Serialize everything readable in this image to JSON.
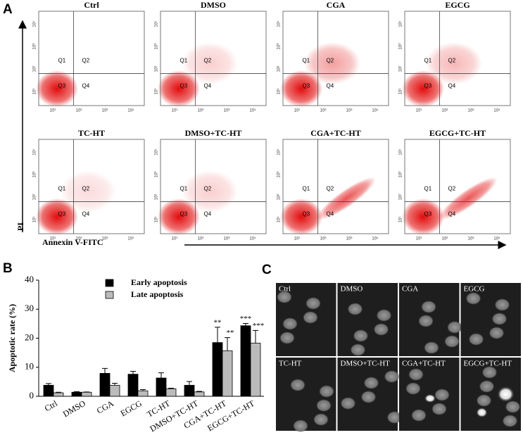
{
  "panel_a": {
    "label": "A",
    "plots": [
      "Ctrl",
      "DMSO",
      "CGA",
      "EGCG",
      "TC-HT",
      "DMSO+TC-HT",
      "CGA+TC-HT",
      "EGCG+TC-HT"
    ],
    "tick_labels": [
      "10¹",
      "10²",
      "10³",
      "10⁴"
    ],
    "quadrants": [
      "Q1",
      "Q2",
      "Q3",
      "Q4"
    ],
    "y_label": "PI",
    "x_label": "Annexin V-FITC"
  },
  "chart_data": {
    "type": "bar",
    "label": "B",
    "y_label": "Apoptotic rate (%)",
    "categories": [
      "Ctrl",
      "DMSO",
      "CGA",
      "EGCG",
      "TC-HT",
      "DMSO+TC-HT",
      "CGA+TC-HT",
      "EGCG+TC-HT"
    ],
    "series": [
      {
        "name": "Early apoptosis",
        "color": "#000000",
        "values": [
          3.8,
          1.4,
          7.9,
          7.6,
          6.3,
          3.8,
          18.5,
          24.3
        ],
        "errors": [
          0.6,
          0.2,
          1.7,
          1.0,
          1.8,
          1.3,
          5.3,
          0.8
        ],
        "annotations": [
          null,
          null,
          null,
          null,
          null,
          null,
          "**",
          "***"
        ]
      },
      {
        "name": "Late apoptosis",
        "color": "#bbbbbb",
        "values": [
          1.2,
          1.4,
          3.8,
          1.9,
          2.6,
          1.5,
          15.7,
          18.3
        ],
        "errors": [
          0.2,
          0.1,
          0.7,
          0.4,
          0.2,
          0.2,
          4.5,
          4.4
        ],
        "annotations": [
          null,
          null,
          null,
          null,
          null,
          null,
          "**",
          "***"
        ]
      }
    ],
    "ylim": [
      0,
      40
    ],
    "yticks": [
      0,
      10,
      20,
      30,
      40
    ]
  },
  "panel_c": {
    "label": "C",
    "images": [
      "Ctrl",
      "DMSO",
      "CGA",
      "EGCG",
      "TC-HT",
      "DMSO+TC-HT",
      "CGA+TC-HT",
      "EGCG+TC-HT"
    ]
  }
}
